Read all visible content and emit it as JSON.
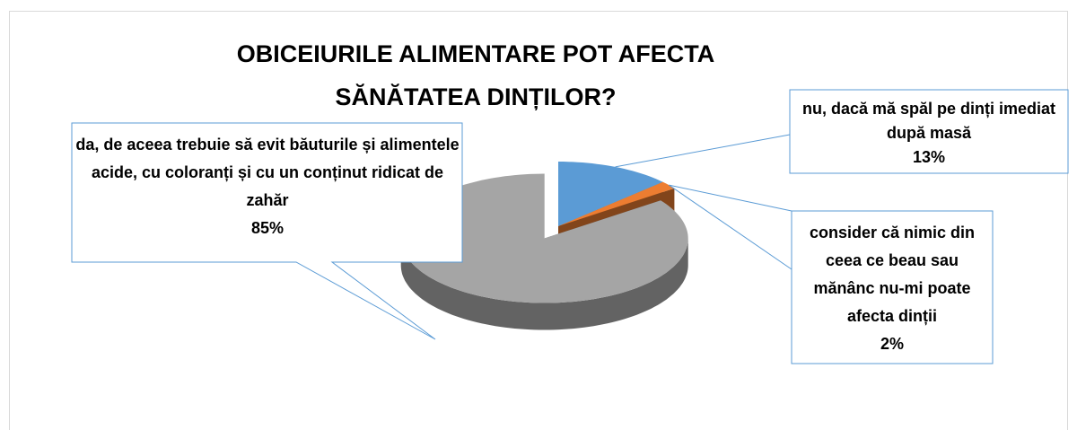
{
  "chart_data": {
    "type": "pie",
    "title": "OBICEIURILE ALIMENTARE POT AFECTA SĂNĂTATEA DINȚILOR?",
    "categories": [
      "nu, dacă mă spăl pe dinți imediat după masă",
      "consider că nimic din ceea ce beau sau mănânc nu-mi poate afecta dinții",
      "da, de aceea trebuie să evit băuturile și alimentele acide, cu coloranți și cu un conținut ridicat de zahăr"
    ],
    "values": [
      13,
      2,
      85
    ],
    "value_labels": [
      "13%",
      "2%",
      "85%"
    ],
    "colors": [
      "#5b9bd5",
      "#ed7d31",
      "#a5a5a5"
    ]
  }
}
